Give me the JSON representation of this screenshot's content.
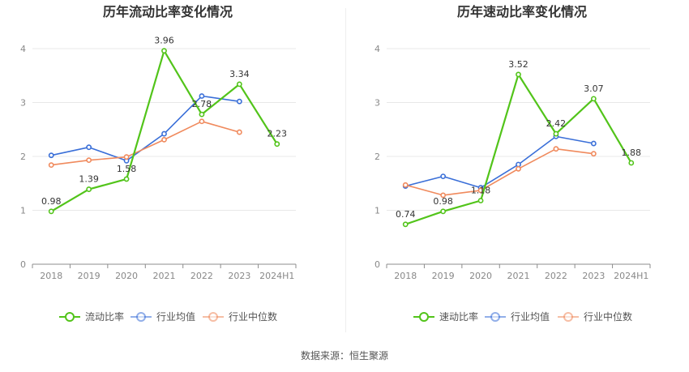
{
  "source_text": "数据来源：恒生聚源",
  "colors": {
    "company": "#52c41a",
    "industry_avg": "#3a6fd8",
    "industry_median": "#f08a5d",
    "grid": "#e8e8e8",
    "axis": "#8c8c8c",
    "tick_text": "#888888"
  },
  "chart_data": [
    {
      "type": "line",
      "title": "历年流动比率变化情况",
      "categories": [
        "2018",
        "2019",
        "2020",
        "2021",
        "2022",
        "2023",
        "2024H1"
      ],
      "ylim": [
        0,
        4
      ],
      "yticks": [
        0,
        1,
        2,
        3,
        4
      ],
      "grid": true,
      "legend_position": "bottom-center",
      "series": [
        {
          "name": "流动比率",
          "key": "company",
          "values": [
            0.98,
            1.39,
            1.58,
            3.96,
            2.78,
            3.34,
            2.23
          ],
          "labels": [
            "0.98",
            "1.39",
            "1.58",
            "3.96",
            "2.78",
            "3.34",
            "2.23"
          ]
        },
        {
          "name": "行业均值",
          "key": "industry_avg",
          "values": [
            2.02,
            2.17,
            1.92,
            2.42,
            3.12,
            3.02,
            null
          ]
        },
        {
          "name": "行业中位数",
          "key": "industry_median",
          "values": [
            1.84,
            1.93,
            1.99,
            2.31,
            2.65,
            2.45,
            null
          ]
        }
      ]
    },
    {
      "type": "line",
      "title": "历年速动比率变化情况",
      "categories": [
        "2018",
        "2019",
        "2020",
        "2021",
        "2022",
        "2023",
        "2024H1"
      ],
      "ylim": [
        0,
        4
      ],
      "yticks": [
        0,
        1,
        2,
        3,
        4
      ],
      "grid": true,
      "legend_position": "bottom-center",
      "series": [
        {
          "name": "速动比率",
          "key": "company",
          "values": [
            0.74,
            0.98,
            1.18,
            3.52,
            2.42,
            3.07,
            1.88
          ],
          "labels": [
            "0.74",
            "0.98",
            "1.18",
            "3.52",
            "2.42",
            "3.07",
            "1.88"
          ]
        },
        {
          "name": "行业均值",
          "key": "industry_avg",
          "values": [
            1.45,
            1.63,
            1.42,
            1.85,
            2.37,
            2.24,
            null
          ]
        },
        {
          "name": "行业中位数",
          "key": "industry_median",
          "values": [
            1.47,
            1.28,
            1.37,
            1.77,
            2.14,
            2.05,
            null
          ]
        }
      ]
    }
  ]
}
